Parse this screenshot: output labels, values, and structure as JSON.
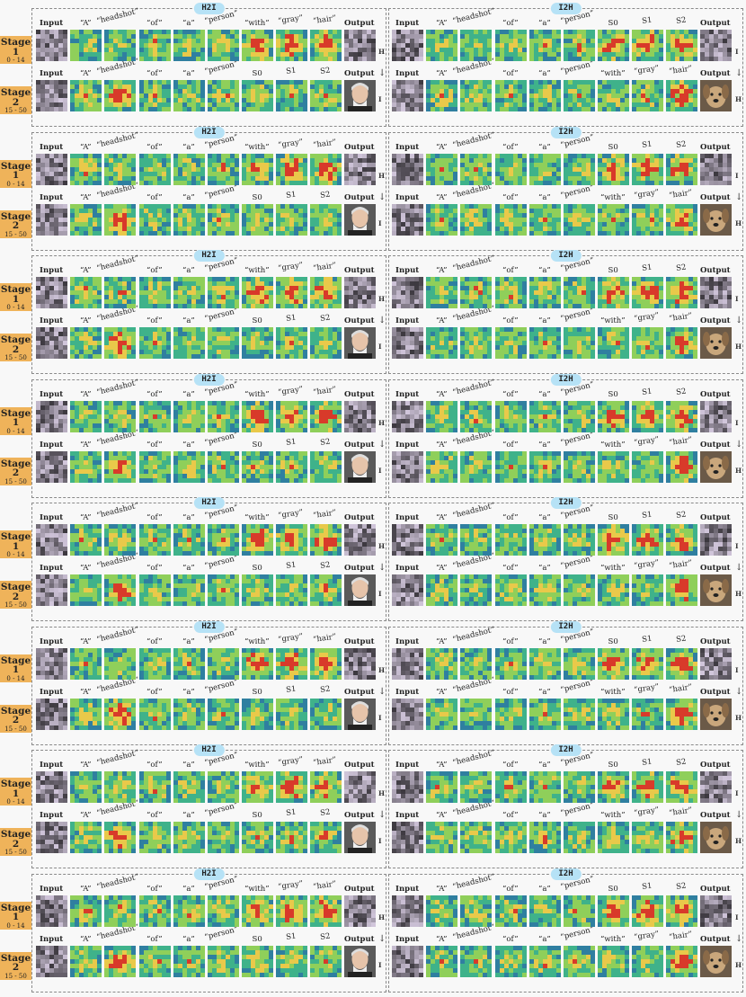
{
  "stage1": {
    "title": "Stage",
    "num": "1",
    "range": "0 - 14"
  },
  "stage2": {
    "title": "Stage",
    "num": "2",
    "range": "15 - 50"
  },
  "arrow": "↓",
  "h2i": {
    "title": "H2I",
    "row1_labels": [
      "Input",
      "“A”",
      "“headshot”",
      "“of”",
      "“a”",
      "“person”",
      "“with”",
      "“gray”",
      "“hair”",
      "Output"
    ],
    "row2_labels": [
      "Input",
      "“A”",
      "“headshot”",
      "“of”",
      "“a”",
      "“person”",
      "S0",
      "S1",
      "S2",
      "Output"
    ],
    "row1_side": "H",
    "row2_side": "I"
  },
  "i2h": {
    "title": "I2H",
    "row1_labels": [
      "Input",
      "“A”",
      "“headshot”",
      "“of”",
      "“a”",
      "“person”",
      "S0",
      "S1",
      "S2",
      "Output"
    ],
    "row2_labels": [
      "Input",
      "“A”",
      "“headshot”",
      "“of”",
      "“a”",
      "“person”",
      "“with”",
      "“gray”",
      "“hair”",
      "Output"
    ],
    "row1_side": "I",
    "row2_side": "H"
  },
  "colors": {
    "badge": "#efb35a",
    "pill": "#b6e2f6",
    "heat_low": "#2a3f8f",
    "heat_mid": "#3fb28a",
    "heat_high": "#d83a2a"
  },
  "icons": [
    "person-photo-icon",
    "dog-photo-icon"
  ]
}
